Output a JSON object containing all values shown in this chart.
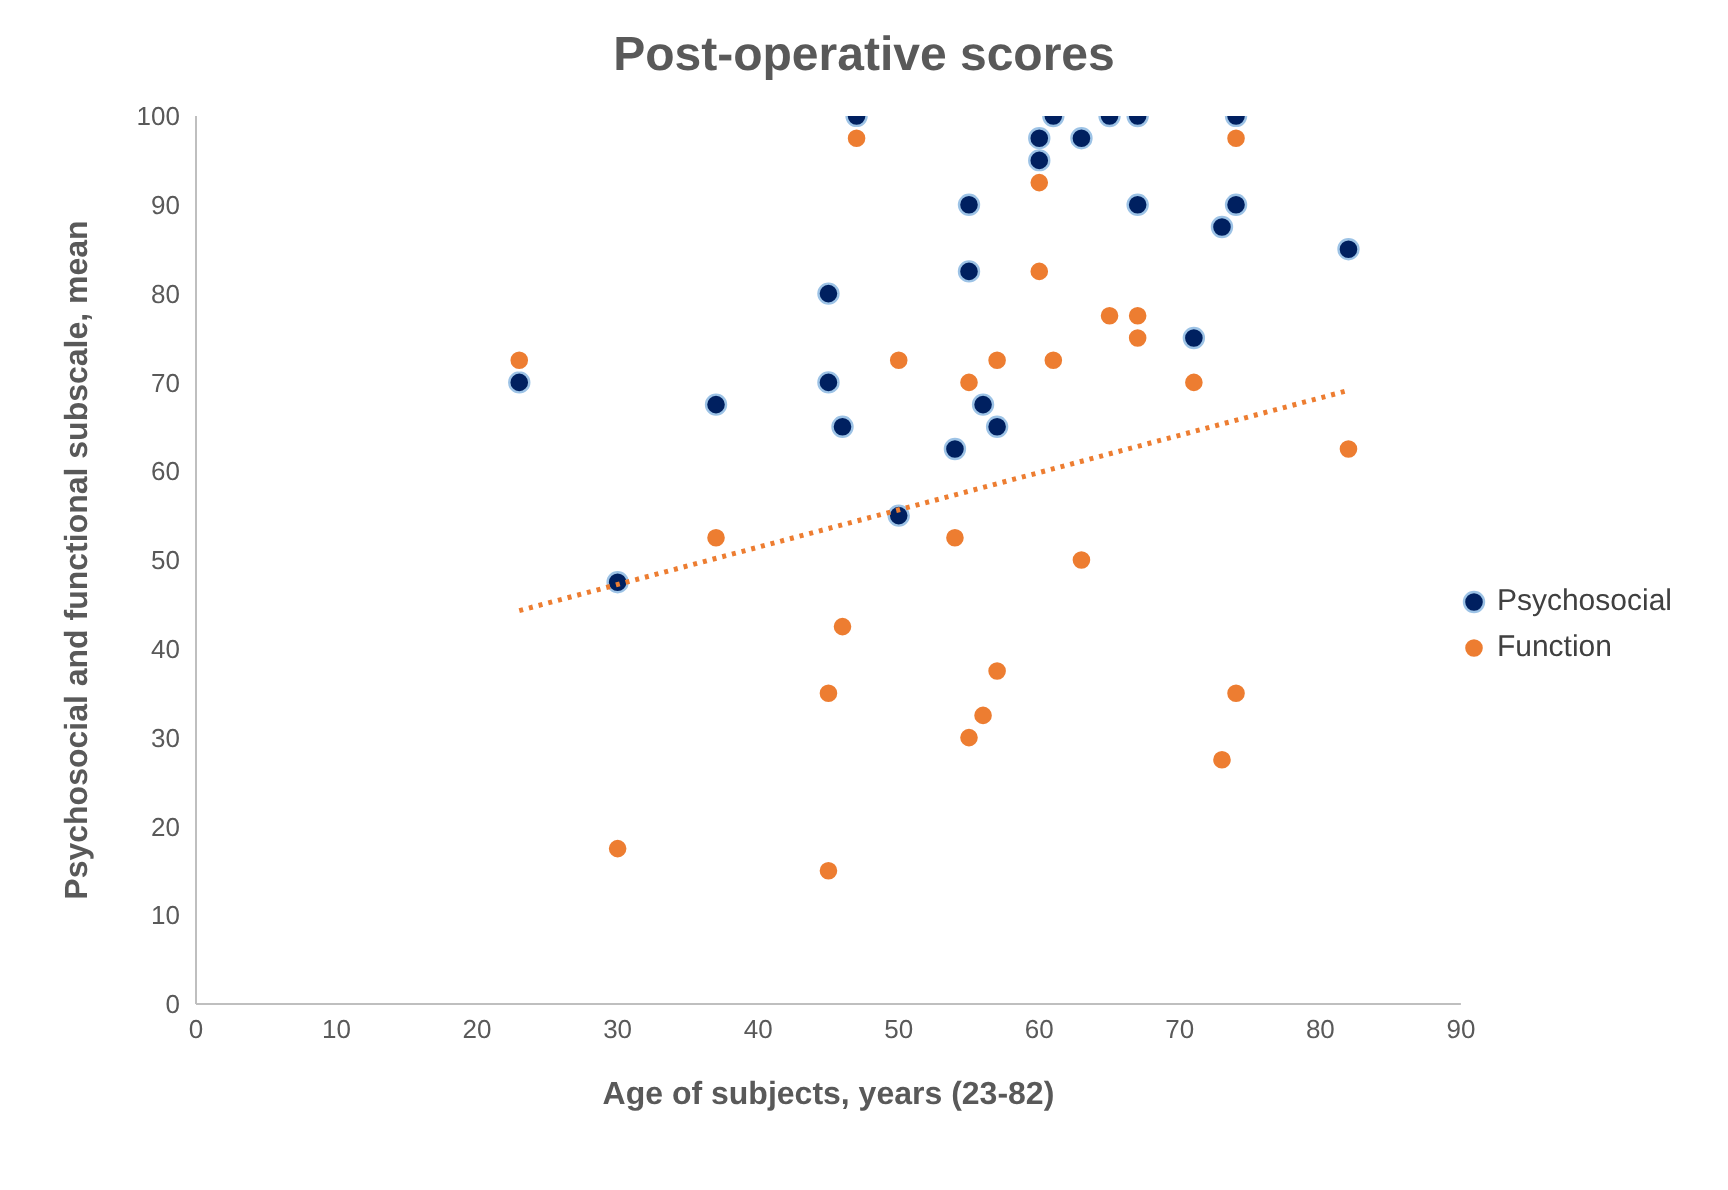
{
  "chart_data": {
    "type": "scatter",
    "title": "Post-operative scores",
    "xlabel": "Age of subjects, years (23-82)",
    "ylabel": "Psychosocial and functional subscale, mean",
    "xlim": [
      0,
      90
    ],
    "xticks": [
      0,
      10,
      20,
      30,
      40,
      50,
      60,
      70,
      80,
      90
    ],
    "ylim": [
      0,
      100
    ],
    "yticks": [
      0,
      10,
      20,
      30,
      40,
      50,
      60,
      70,
      80,
      90,
      100
    ],
    "grid": false,
    "legend": "right",
    "marker": "circle",
    "series": [
      {
        "name": "Psychosocial",
        "color": "#002060",
        "x": [
          23,
          30,
          37,
          45,
          45,
          46,
          47,
          50,
          54,
          55,
          55,
          56,
          57,
          60,
          60,
          61,
          63,
          65,
          67,
          67,
          71,
          73,
          74,
          74,
          82
        ],
        "values": [
          70,
          47.5,
          67.5,
          80,
          70,
          65,
          100,
          55,
          62.5,
          90,
          82.5,
          67.5,
          65,
          97.5,
          95,
          100,
          97.5,
          100,
          100,
          90,
          75,
          87.5,
          100,
          90,
          85
        ]
      },
      {
        "name": "Function",
        "color": "#ed7d31",
        "x": [
          23,
          30,
          37,
          45,
          45,
          46,
          47,
          50,
          54,
          55,
          55,
          56,
          57,
          57,
          60,
          60,
          61,
          63,
          65,
          67,
          67,
          71,
          73,
          74,
          74,
          82
        ],
        "values": [
          72.5,
          17.5,
          52.5,
          35,
          15,
          42.5,
          97.5,
          72.5,
          52.5,
          70,
          30,
          32.5,
          72.5,
          37.5,
          92.5,
          82.5,
          72.5,
          50,
          77.5,
          77.5,
          75,
          70,
          27.5,
          97.5,
          35,
          62.5
        ]
      },
      {
        "type": "line",
        "color": "#ed7d31",
        "line_style": "dotted",
        "marker": "none",
        "x": [
          23,
          82
        ],
        "values": [
          44.3,
          69.1
        ]
      }
    ]
  }
}
